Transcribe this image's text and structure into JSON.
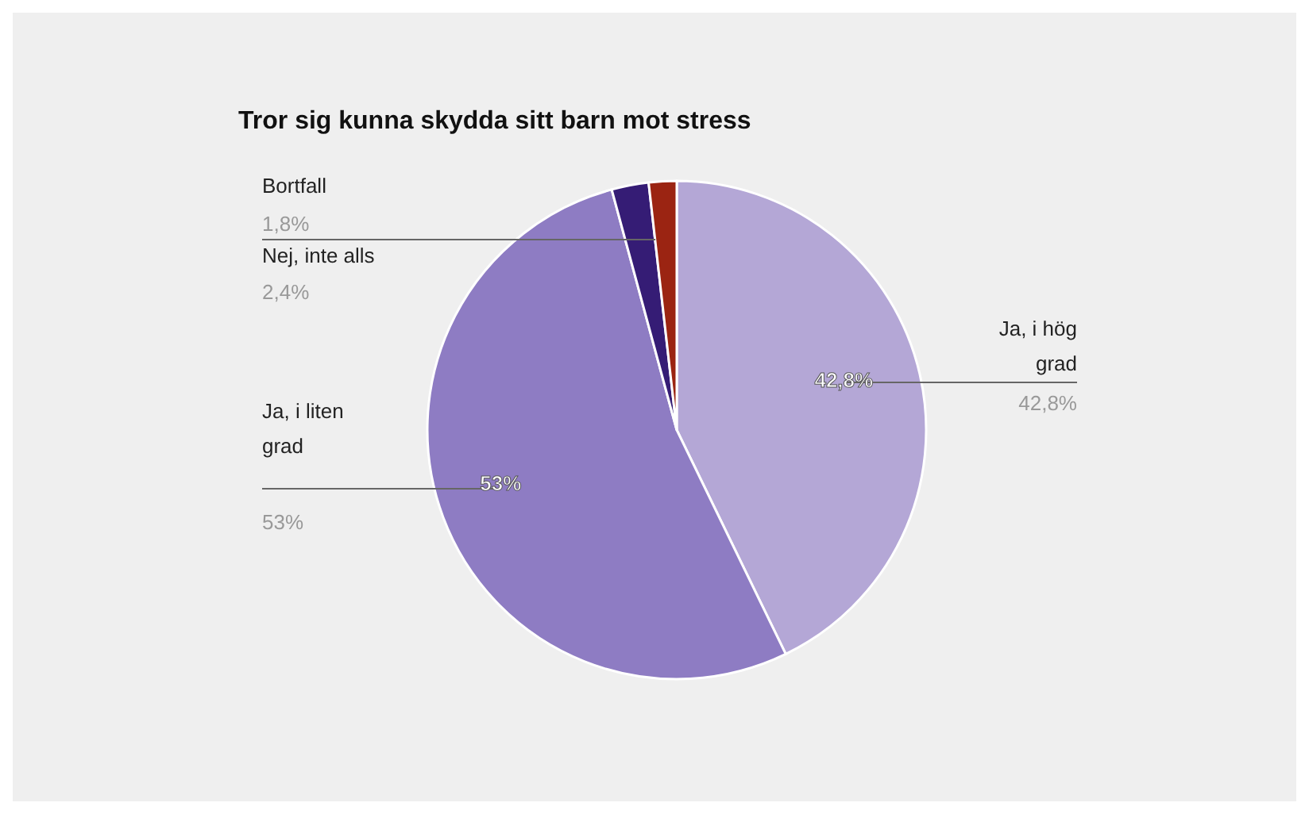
{
  "chart_data": {
    "type": "pie",
    "title": "Tror sig kunna skydda sitt barn mot stress",
    "categories": [
      "Ja, i hög grad",
      "Ja, i liten grad",
      "Nej, inte alls",
      "Bortfall"
    ],
    "values": [
      42.8,
      53,
      2.4,
      1.8
    ],
    "value_labels": [
      "42,8%",
      "53%",
      "2,4%",
      "1,8%"
    ],
    "colors": [
      "#b4a7d6",
      "#8e7cc3",
      "#351c75",
      "#9b2412"
    ]
  }
}
